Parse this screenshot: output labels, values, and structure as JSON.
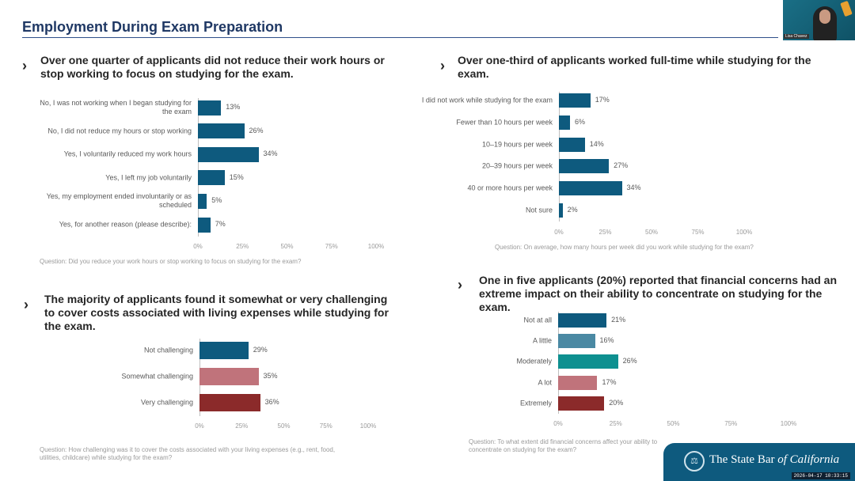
{
  "page": {
    "title": "Employment During Exam Preparation"
  },
  "video": {
    "name": "Lisa Chavez"
  },
  "brand": {
    "text_main": "The State Bar ",
    "text_italic": "of California",
    "timestamp": "2026-04-17 10:33:15"
  },
  "ticks": [
    "0%",
    "25%",
    "50%",
    "75%",
    "100%"
  ],
  "panels": [
    {
      "heading": "Over one quarter of applicants did not reduce their work hours or stop working to focus on studying for the exam.",
      "question": "Question: Did you reduce your work hours or stop working to focus on studying for the exam?",
      "chart_data": {
        "type": "bar",
        "orientation": "horizontal",
        "xlim": [
          0,
          100
        ],
        "categories": [
          "No, I was not working when I began studying for the exam",
          "No, I did not reduce my hours or stop working",
          "Yes, I voluntarily reduced my work hours",
          "Yes, I left my job voluntarily",
          "Yes, my employment ended involuntarily or as scheduled",
          "Yes, for another reason (please describe):"
        ],
        "values": [
          13,
          26,
          34,
          15,
          5,
          7
        ],
        "labels": [
          "13%",
          "26%",
          "34%",
          "15%",
          "5%",
          "7%"
        ],
        "colors": [
          "#0e5a7e",
          "#0e5a7e",
          "#0e5a7e",
          "#0e5a7e",
          "#0e5a7e",
          "#0e5a7e"
        ]
      }
    },
    {
      "heading": "Over one-third of applicants worked full-time while studying for the exam.",
      "question": "Question: On average, how many hours per week did you work while studying for the exam?",
      "chart_data": {
        "type": "bar",
        "orientation": "horizontal",
        "xlim": [
          0,
          100
        ],
        "categories": [
          "I did not work while studying for the exam",
          "Fewer than 10 hours per week",
          "10–19 hours per week",
          "20–39 hours per week",
          "40 or more hours per week",
          "Not sure"
        ],
        "values": [
          17,
          6,
          14,
          27,
          34,
          2
        ],
        "labels": [
          "17%",
          "6%",
          "14%",
          "27%",
          "34%",
          "2%"
        ],
        "colors": [
          "#0e5a7e",
          "#0e5a7e",
          "#0e5a7e",
          "#0e5a7e",
          "#0e5a7e",
          "#0e5a7e"
        ]
      }
    },
    {
      "heading": "The majority of applicants found it somewhat or very challenging to cover costs associated with living expenses while studying for the exam.",
      "question": "Question: How challenging was it to cover the costs associated with your living expenses (e.g., rent, food, utilities, childcare) while studying for the exam?",
      "chart_data": {
        "type": "bar",
        "orientation": "horizontal",
        "xlim": [
          0,
          100
        ],
        "categories": [
          "Not challenging",
          "Somewhat challenging",
          "Very challenging"
        ],
        "values": [
          29,
          35,
          36
        ],
        "labels": [
          "29%",
          "35%",
          "36%"
        ],
        "colors": [
          "#0e5a7e",
          "#c0737b",
          "#8b2a2a"
        ]
      }
    },
    {
      "heading": "One in five applicants (20%) reported that financial concerns had an extreme impact on their ability to concentrate on studying for the exam.",
      "question": "Question: To what extent did financial concerns affect your ability to concentrate on studying for the exam?",
      "chart_data": {
        "type": "bar",
        "orientation": "horizontal",
        "xlim": [
          0,
          100
        ],
        "categories": [
          "Not at all",
          "A little",
          "Moderately",
          "A lot",
          "Extremely"
        ],
        "values": [
          21,
          16,
          26,
          17,
          20
        ],
        "labels": [
          "21%",
          "16%",
          "26%",
          "17%",
          "20%"
        ],
        "colors": [
          "#0e5a7e",
          "#4a89a3",
          "#0e9090",
          "#c0737b",
          "#8b2a2a"
        ]
      }
    }
  ]
}
